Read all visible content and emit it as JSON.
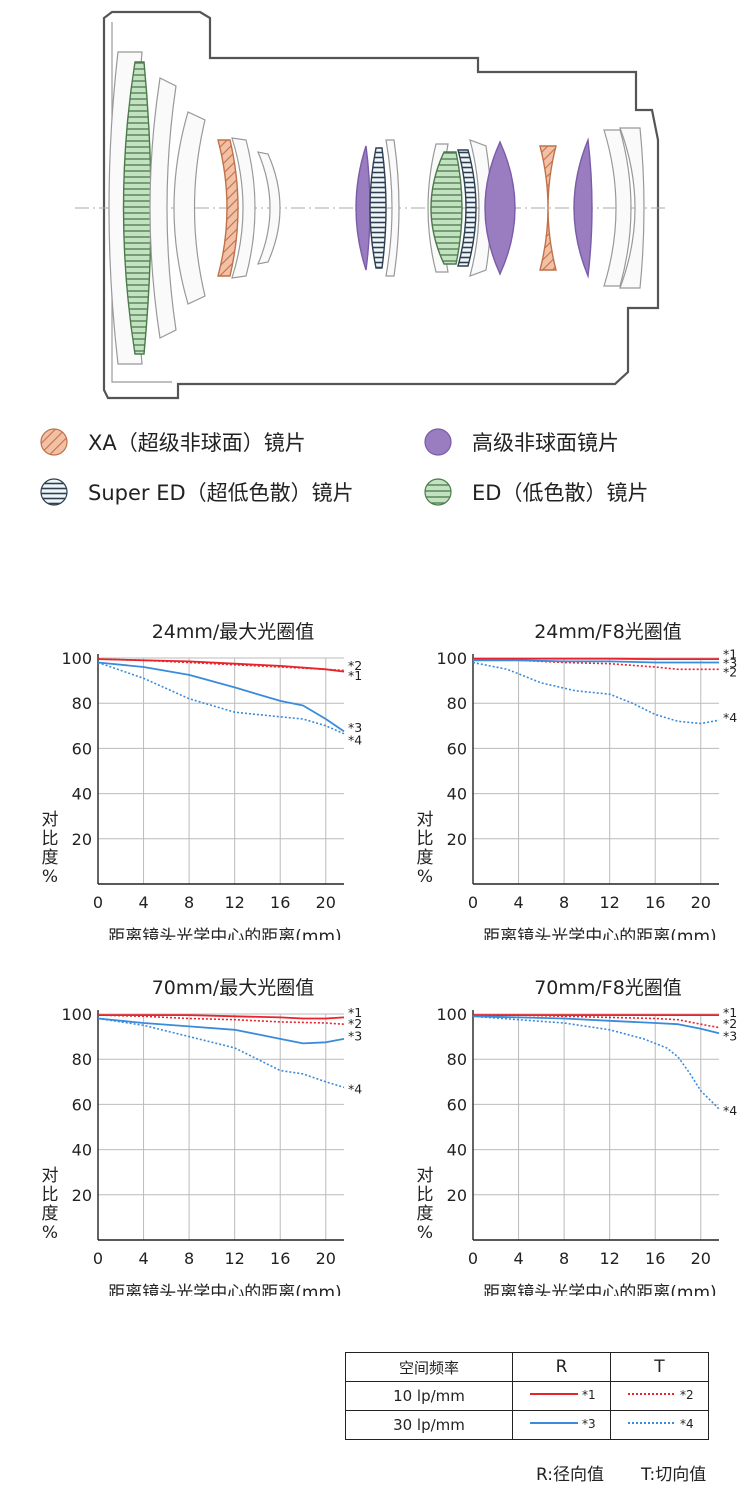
{
  "lens_legend": [
    {
      "label": "XA（超级非球面）镜片",
      "swatch": "hatch",
      "color": "#f2c0a4",
      "stroke": "#c0714a"
    },
    {
      "label": "高级非球面镜片",
      "swatch": "solid",
      "color": "#9a7cc0",
      "stroke": "#7a5ca8"
    },
    {
      "label": "Super ED（超低色散）镜片",
      "swatch": "stripe",
      "color": "#cfe3ec",
      "stroke": "#2c3e50"
    },
    {
      "label": "ED（低色散）镜片",
      "swatch": "stripe",
      "color": "#c3e2c2",
      "stroke": "#4c7a4a"
    }
  ],
  "colors": {
    "red": "#e8232b",
    "blue": "#3a8bdc",
    "axis": "#222222",
    "grid": "#bbbbbb"
  },
  "chart_data": [
    {
      "type": "line",
      "title": "24mm/最大光圈值",
      "xlabel": "距离镜头光学中心的距离(mm)",
      "ylabel": "对比度%",
      "xlim": [
        0,
        21.6
      ],
      "ylim": [
        0,
        100
      ],
      "x_ticks": [
        0,
        4,
        8,
        12,
        16,
        20
      ],
      "y_ticks": [
        20,
        40,
        60,
        80,
        100
      ],
      "series": [
        {
          "name": "*1",
          "color": "red",
          "dash": false,
          "points": [
            [
              0,
              99.5
            ],
            [
              4,
              99
            ],
            [
              8,
              98.5
            ],
            [
              12,
              97.5
            ],
            [
              16,
              96.5
            ],
            [
              20,
              95
            ],
            [
              21.6,
              94
            ]
          ]
        },
        {
          "name": "*2",
          "color": "red",
          "dash": true,
          "points": [
            [
              0,
              99.5
            ],
            [
              4,
              99
            ],
            [
              8,
              98
            ],
            [
              12,
              97
            ],
            [
              16,
              96
            ],
            [
              20,
              95
            ],
            [
              21.6,
              94.5
            ]
          ]
        },
        {
          "name": "*3",
          "color": "blue",
          "dash": false,
          "points": [
            [
              0,
              98
            ],
            [
              4,
              96
            ],
            [
              8,
              92.5
            ],
            [
              12,
              87
            ],
            [
              16,
              81
            ],
            [
              18,
              79
            ],
            [
              20,
              73
            ],
            [
              21.6,
              67.5
            ]
          ]
        },
        {
          "name": "*4",
          "color": "blue",
          "dash": true,
          "points": [
            [
              0,
              98
            ],
            [
              4,
              91
            ],
            [
              8,
              82
            ],
            [
              12,
              76
            ],
            [
              16,
              74
            ],
            [
              18,
              73
            ],
            [
              20,
              70
            ],
            [
              21.6,
              66.5
            ]
          ]
        }
      ],
      "end_labels": [
        {
          "text": "*2",
          "y": 96.5
        },
        {
          "text": "*1",
          "y": 92
        },
        {
          "text": "*3",
          "y": 69
        },
        {
          "text": "*4",
          "y": 63.5
        }
      ]
    },
    {
      "type": "line",
      "title": "24mm/F8光圈值",
      "xlabel": "距离镜头光学中心的距离(mm)",
      "ylabel": "对比度%",
      "xlim": [
        0,
        21.6
      ],
      "ylim": [
        0,
        100
      ],
      "x_ticks": [
        0,
        4,
        8,
        12,
        16,
        20
      ],
      "y_ticks": [
        20,
        40,
        60,
        80,
        100
      ],
      "series": [
        {
          "name": "*1",
          "color": "red",
          "dash": false,
          "points": [
            [
              0,
              99.7
            ],
            [
              4,
              99.7
            ],
            [
              8,
              99.7
            ],
            [
              12,
              99.7
            ],
            [
              16,
              99.5
            ],
            [
              20,
              99.5
            ],
            [
              21.6,
              99.5
            ]
          ]
        },
        {
          "name": "*2",
          "color": "red",
          "dash": true,
          "points": [
            [
              0,
              99.5
            ],
            [
              4,
              99
            ],
            [
              8,
              98
            ],
            [
              12,
              97.5
            ],
            [
              16,
              96
            ],
            [
              18,
              95
            ],
            [
              20,
              95
            ],
            [
              21.6,
              95
            ]
          ]
        },
        {
          "name": "*3",
          "color": "blue",
          "dash": false,
          "points": [
            [
              0,
              99
            ],
            [
              4,
              99
            ],
            [
              8,
              98.5
            ],
            [
              12,
              98.5
            ],
            [
              16,
              98
            ],
            [
              20,
              98
            ],
            [
              21.6,
              98
            ]
          ]
        },
        {
          "name": "*4",
          "color": "blue",
          "dash": true,
          "points": [
            [
              0,
              98
            ],
            [
              3,
              95
            ],
            [
              6,
              89
            ],
            [
              9,
              85.5
            ],
            [
              12,
              84
            ],
            [
              14,
              80
            ],
            [
              16,
              75
            ],
            [
              18,
              72
            ],
            [
              20,
              71
            ],
            [
              21.6,
              72.5
            ]
          ]
        }
      ],
      "end_labels": [
        {
          "text": "*1",
          "y": 101.5
        },
        {
          "text": "*3",
          "y": 97.5
        },
        {
          "text": "*2",
          "y": 93.5
        },
        {
          "text": "*4",
          "y": 73.5
        }
      ]
    },
    {
      "type": "line",
      "title": "70mm/最大光圈值",
      "xlabel": "距离镜头光学中心的距离(mm)",
      "ylabel": "对比度%",
      "xlim": [
        0,
        21.6
      ],
      "ylim": [
        0,
        100
      ],
      "x_ticks": [
        0,
        4,
        8,
        12,
        16,
        20
      ],
      "y_ticks": [
        20,
        40,
        60,
        80,
        100
      ],
      "series": [
        {
          "name": "*1",
          "color": "red",
          "dash": false,
          "points": [
            [
              0,
              99.5
            ],
            [
              4,
              99.5
            ],
            [
              8,
              99.5
            ],
            [
              12,
              99
            ],
            [
              16,
              98.5
            ],
            [
              18,
              98
            ],
            [
              20,
              98
            ],
            [
              21.6,
              98.5
            ]
          ]
        },
        {
          "name": "*2",
          "color": "red",
          "dash": true,
          "points": [
            [
              0,
              99.5
            ],
            [
              4,
              99
            ],
            [
              8,
              98
            ],
            [
              12,
              97.5
            ],
            [
              16,
              96.5
            ],
            [
              20,
              96
            ],
            [
              21.6,
              95.5
            ]
          ]
        },
        {
          "name": "*3",
          "color": "blue",
          "dash": false,
          "points": [
            [
              0,
              98
            ],
            [
              4,
              96
            ],
            [
              8,
              94.5
            ],
            [
              12,
              93
            ],
            [
              14,
              91
            ],
            [
              16,
              89
            ],
            [
              18,
              87
            ],
            [
              20,
              87.5
            ],
            [
              21.6,
              89
            ]
          ]
        },
        {
          "name": "*4",
          "color": "blue",
          "dash": true,
          "points": [
            [
              0,
              98
            ],
            [
              4,
              95
            ],
            [
              8,
              90
            ],
            [
              12,
              85
            ],
            [
              14,
              80
            ],
            [
              16,
              75
            ],
            [
              18,
              73.5
            ],
            [
              20,
              70
            ],
            [
              21.6,
              67.5
            ]
          ]
        }
      ],
      "end_labels": [
        {
          "text": "*1",
          "y": 100.5
        },
        {
          "text": "*2",
          "y": 95.5
        },
        {
          "text": "*3",
          "y": 90
        },
        {
          "text": "*4",
          "y": 66.5
        }
      ]
    },
    {
      "type": "line",
      "title": "70mm/F8光圈值",
      "xlabel": "距离镜头光学中心的距离(mm)",
      "ylabel": "对比度%",
      "xlim": [
        0,
        21.6
      ],
      "ylim": [
        0,
        100
      ],
      "x_ticks": [
        0,
        4,
        8,
        12,
        16,
        20
      ],
      "y_ticks": [
        20,
        40,
        60,
        80,
        100
      ],
      "series": [
        {
          "name": "*1",
          "color": "red",
          "dash": false,
          "points": [
            [
              0,
              99.5
            ],
            [
              4,
              99.5
            ],
            [
              8,
              99.5
            ],
            [
              12,
              99.5
            ],
            [
              16,
              99.5
            ],
            [
              20,
              99.5
            ],
            [
              21.6,
              99.5
            ]
          ]
        },
        {
          "name": "*2",
          "color": "red",
          "dash": true,
          "points": [
            [
              0,
              99.5
            ],
            [
              4,
              99.5
            ],
            [
              8,
              99
            ],
            [
              12,
              98.5
            ],
            [
              16,
              98
            ],
            [
              18,
              97.5
            ],
            [
              20,
              95.5
            ],
            [
              21.6,
              94
            ]
          ]
        },
        {
          "name": "*3",
          "color": "blue",
          "dash": false,
          "points": [
            [
              0,
              99
            ],
            [
              4,
              98.5
            ],
            [
              8,
              98
            ],
            [
              12,
              97
            ],
            [
              16,
              96
            ],
            [
              18,
              95.5
            ],
            [
              20,
              93.5
            ],
            [
              21.6,
              91.5
            ]
          ]
        },
        {
          "name": "*4",
          "color": "blue",
          "dash": true,
          "points": [
            [
              0,
              99
            ],
            [
              4,
              97.5
            ],
            [
              8,
              96
            ],
            [
              12,
              93
            ],
            [
              15,
              89
            ],
            [
              17,
              85
            ],
            [
              18,
              81
            ],
            [
              19,
              74
            ],
            [
              20,
              66
            ],
            [
              21,
              61
            ],
            [
              21.6,
              58
            ]
          ]
        }
      ],
      "end_labels": [
        {
          "text": "*1",
          "y": 100.5
        },
        {
          "text": "*2",
          "y": 95.5
        },
        {
          "text": "*3",
          "y": 90
        },
        {
          "text": "*4",
          "y": 57
        }
      ]
    }
  ],
  "key_table": {
    "headers": [
      "空间频率",
      "R",
      "T"
    ],
    "rows": [
      {
        "freq": "10 lp/mm",
        "r_label": "*1",
        "t_label": "*2",
        "color": "red"
      },
      {
        "freq": "30 lp/mm",
        "r_label": "*3",
        "t_label": "*4",
        "color": "blue"
      }
    ]
  },
  "notes": {
    "r": "R:径向值",
    "t": "T:切向值"
  }
}
